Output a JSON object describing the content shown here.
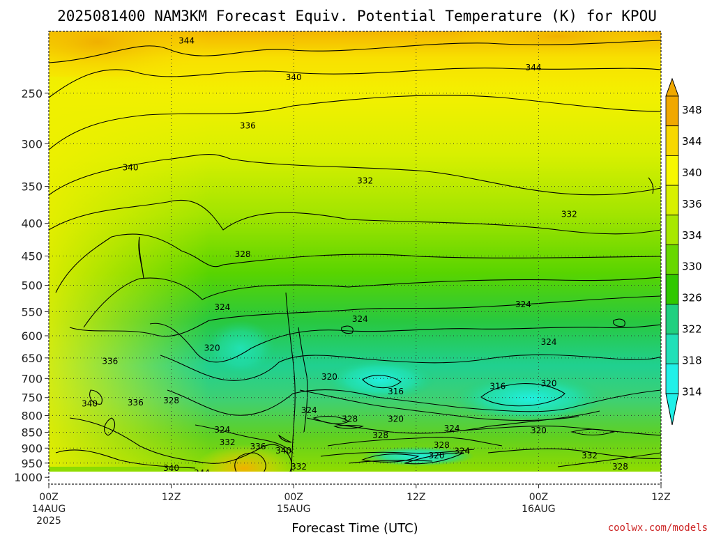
{
  "chart_data": {
    "type": "heatmap",
    "title": "2025081400 NAM3KM Forecast Equiv. Potential Temperature (K) for KPOU",
    "xlabel": "Forecast Time (UTC)",
    "ylabel": "",
    "x_ticks": [
      {
        "label": "00Z",
        "hours": 0,
        "sub": "14AUG",
        "sub2": "2025"
      },
      {
        "label": "12Z",
        "hours": 12,
        "sub": "",
        "sub2": ""
      },
      {
        "label": "00Z",
        "hours": 24,
        "sub": "15AUG",
        "sub2": ""
      },
      {
        "label": "12Z",
        "hours": 36,
        "sub": "",
        "sub2": ""
      },
      {
        "label": "00Z",
        "hours": 48,
        "sub": "16AUG",
        "sub2": ""
      },
      {
        "label": "12Z",
        "hours": 60,
        "sub": "",
        "sub2": ""
      }
    ],
    "xlim": [
      0,
      60
    ],
    "y_ticks": [
      250,
      300,
      350,
      400,
      450,
      500,
      550,
      600,
      650,
      700,
      750,
      800,
      850,
      900,
      950,
      1000
    ],
    "ylim": [
      1025,
      200
    ],
    "y_scale": "log-pressure",
    "grid": true,
    "colorbar": {
      "labels": [
        348,
        344,
        340,
        336,
        334,
        330,
        326,
        322,
        318,
        314
      ],
      "colors": [
        "#f0a800",
        "#f8d800",
        "#f8f800",
        "#d8f000",
        "#a8e800",
        "#68d800",
        "#30c800",
        "#20d080",
        "#20e0b8",
        "#20f0e8"
      ],
      "extend": "both"
    },
    "contour_labels": [
      {
        "text": "344",
        "hours": 13.5,
        "p": 207
      },
      {
        "text": "344",
        "hours": 47.5,
        "p": 228
      },
      {
        "text": "340",
        "hours": 24,
        "p": 236
      },
      {
        "text": "336",
        "hours": 19.5,
        "p": 281
      },
      {
        "text": "340",
        "hours": 8,
        "p": 327
      },
      {
        "text": "332",
        "hours": 31,
        "p": 343
      },
      {
        "text": "332",
        "hours": 51,
        "p": 387
      },
      {
        "text": "328",
        "hours": 19,
        "p": 447
      },
      {
        "text": "324",
        "hours": 17,
        "p": 541
      },
      {
        "text": "324",
        "hours": 30.5,
        "p": 565
      },
      {
        "text": "324",
        "hours": 46.5,
        "p": 536
      },
      {
        "text": "324",
        "hours": 49,
        "p": 614
      },
      {
        "text": "320",
        "hours": 16,
        "p": 627
      },
      {
        "text": "336",
        "hours": 6,
        "p": 658
      },
      {
        "text": "320",
        "hours": 27.5,
        "p": 696
      },
      {
        "text": "316",
        "hours": 34,
        "p": 734
      },
      {
        "text": "316",
        "hours": 44,
        "p": 720
      },
      {
        "text": "320",
        "hours": 49,
        "p": 713
      },
      {
        "text": "340",
        "hours": 4,
        "p": 767
      },
      {
        "text": "336",
        "hours": 8.5,
        "p": 764
      },
      {
        "text": "328",
        "hours": 12,
        "p": 758
      },
      {
        "text": "324",
        "hours": 25.5,
        "p": 785
      },
      {
        "text": "328",
        "hours": 29.5,
        "p": 810
      },
      {
        "text": "320",
        "hours": 34,
        "p": 810
      },
      {
        "text": "328",
        "hours": 32.5,
        "p": 860
      },
      {
        "text": "324",
        "hours": 39.5,
        "p": 838
      },
      {
        "text": "320",
        "hours": 48,
        "p": 845
      },
      {
        "text": "324",
        "hours": 17,
        "p": 843
      },
      {
        "text": "332",
        "hours": 17.5,
        "p": 882
      },
      {
        "text": "336",
        "hours": 20.5,
        "p": 895
      },
      {
        "text": "340",
        "hours": 23,
        "p": 908
      },
      {
        "text": "328",
        "hours": 38.5,
        "p": 890
      },
      {
        "text": "324",
        "hours": 40.5,
        "p": 910
      },
      {
        "text": "320",
        "hours": 38,
        "p": 925
      },
      {
        "text": "332",
        "hours": 53,
        "p": 925
      },
      {
        "text": "332",
        "hours": 24.5,
        "p": 962
      },
      {
        "text": "328",
        "hours": 56,
        "p": 962
      },
      {
        "text": "340",
        "hours": 12,
        "p": 968
      },
      {
        "text": "344",
        "hours": 15,
        "p": 985
      }
    ]
  },
  "credit": "coolwx.com/models"
}
